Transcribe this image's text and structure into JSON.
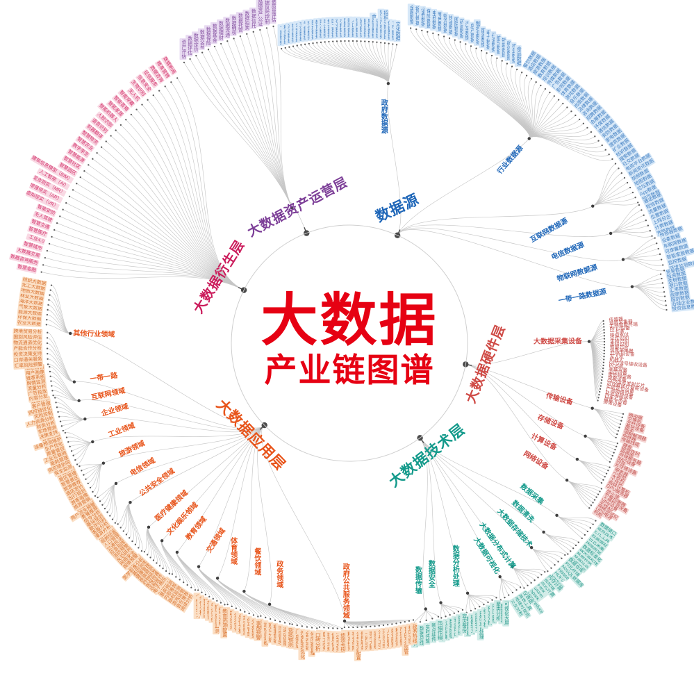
{
  "title": {
    "line1": "大数据",
    "line2": "产业链图谱",
    "color": "#e60113"
  },
  "branches": [
    {
      "name": "数据源",
      "color": "#1e66b8",
      "leaf_color": "#4380c2",
      "leaf_bg": "#d7e8f8",
      "node_angle": -66,
      "label": {
        "angle": -70.4,
        "r": 206,
        "rot": -25,
        "size": 21
      },
      "groups": [
        {
          "name": "政府数据源",
          "angle": -81.5,
          "label_r": 330,
          "hub_r": 378,
          "leaf_r": 438,
          "a0": -103,
          "a1": -81,
          "leaves": [
            "工商数据",
            "税务数据",
            "海关数据",
            "社保数据",
            "公安数据",
            "交通数据",
            "气象数据",
            "环保数据",
            "医疗数据",
            "教育数据",
            "司法数据",
            "审计数据",
            "统计数据",
            "国土数据",
            "农业数据",
            "水利数据",
            "民政数据",
            "财政数据",
            "人口数据",
            "信用数据",
            "旅游数据",
            "能源数据",
            "质检数据",
            "食药监数据",
            "安监数据",
            "知识产权数据",
            "招标采购数据",
            "住建数据",
            "卫生数据",
            "文化数据"
          ]
        },
        {
          "name": "行业数据源",
          "angle": -48.7,
          "label_r": 351,
          "hub_r": 392,
          "leaf_r": 465,
          "a0": -79,
          "a1": -35,
          "leaves": [
            "金融数据",
            "银行数据",
            "证券数据",
            "保险数据",
            "电商数据",
            "零售数据",
            "物流数据",
            "快递数据",
            "医院数据",
            "药品数据",
            "汽车数据",
            "房产数据",
            "制造业数据",
            "能源数据",
            "电力数据",
            "石油数据",
            "航空数据",
            "铁路数据",
            "航运数据",
            "农业数据",
            "食品数据",
            "餐饮数据",
            "酒店数据",
            "旅游数据",
            "教育数据",
            "培训数据",
            "传媒数据",
            "广告数据",
            "影视数据",
            "体育数据",
            "游戏数据",
            "音乐数据",
            "出版数据",
            "法律数据",
            "咨询数据",
            "招聘数据",
            "会展数据",
            "环保数据",
            "通信数据",
            "安防数据",
            "家电数据",
            "建筑数据",
            "矿业数据",
            "纺织数据"
          ]
        },
        {
          "name": "互联网数据源",
          "angle": -29.4,
          "label_r": 330,
          "hub_r": 402,
          "leaf_r": 465,
          "a0": -34,
          "a1": -26,
          "leaves": [
            "搜索数据",
            "社交数据",
            "电商平台数据",
            "新闻资讯数据",
            "视频数据",
            "地图数据",
            "论坛数据",
            "App数据",
            "网页数据"
          ]
        },
        {
          "name": "电信数据源",
          "angle": -22.8,
          "label_r": 341,
          "hub_r": 408,
          "leaf_r": 465,
          "a0": -25.5,
          "a1": -19.5,
          "leaves": [
            "通话数据",
            "短信数据",
            "流量数据",
            "位置数据",
            "上网日志",
            "计费数据",
            "宽带数据"
          ]
        },
        {
          "name": "物联网数据源",
          "angle": -17,
          "label_r": 343,
          "hub_r": 412,
          "leaf_r": 468,
          "a0": -19,
          "a1": -13,
          "leaves": [
            "传感器数据",
            "设备数据",
            "车联网数据",
            "可穿戴数据",
            "智能家居数据",
            "监控数据",
            "环境监测数据"
          ]
        },
        {
          "name": "一带一路数据源",
          "angle": -11.3,
          "label_r": 342,
          "hub_r": 415,
          "leaf_r": 462,
          "a0": -12.5,
          "a1": -6,
          "leaves": [
            "贸易数据",
            "投资数据",
            "关税数据",
            "港口数据",
            "汇率数据",
            "政策数据",
            "国别数据",
            "沿线企业数据库",
            "投资信息数据库"
          ]
        }
      ]
    },
    {
      "name": "大数据硬件层",
      "color": "#cf4a45",
      "leaf_color": "#c0504d",
      "leaf_bg": "#f5d6d4",
      "node_angle": 10.3,
      "label": {
        "angle": 8.7,
        "r": 199,
        "rot": -68,
        "size": 19
      },
      "groups": [
        {
          "name": "大数据采集设备",
          "angle": -0.4,
          "label_r": 300,
          "hub_r": 345,
          "leaf_r": 370,
          "a0": -5,
          "a1": 13,
          "plain": true,
          "leaves": [
            "传感器",
            "追踪采集器",
            "手持智能终端",
            "RFID设备",
            "一卡通",
            "移动支付",
            "证件识别",
            "生物识别",
            "条码识别",
            "智能芯片",
            "信息采集器",
            "2D条码设备",
            "无人机",
            "机器人",
            "GPS信号接收设备",
            "POS机",
            "车载设备",
            "监控设备",
            "条形码设备",
            "穿戴设备",
            "GPS信号发射芯片",
            "可穿戴医疗智能设备",
            "实时定位设备",
            "厂商网络设备",
            "轨迹追踪设备",
            "行车记录仪",
            "智能卡设备",
            "摄像设备"
          ]
        },
        {
          "name": "传输设备",
          "angle": 15,
          "label_r": 313,
          "hub_r": 362,
          "leaf_r": 410,
          "a0": 14.5,
          "a1": 19.5,
          "leaves": [
            "路由器",
            "交换机",
            "光纤设备",
            "基站设备",
            "网关",
            "调制解调器",
            "中继器",
            "传输线缆"
          ]
        },
        {
          "name": "存储设备",
          "angle": 21.5,
          "label_r": 311,
          "hub_r": 365,
          "leaf_r": 415,
          "a0": 20.5,
          "a1": 24.5,
          "leaves": [
            "硬盘",
            "磁盘阵列",
            "磁带库",
            "存储服务器",
            "NAS设备",
            "闪存",
            "云存储设备"
          ]
        },
        {
          "name": "计算设备",
          "angle": 27,
          "label_r": 314,
          "hub_r": 368,
          "leaf_r": 418,
          "a0": 25.5,
          "a1": 29,
          "leaves": [
            "服务器",
            "小型机",
            "大型机",
            "工作站",
            "超级计算机",
            "GPU服务器"
          ]
        },
        {
          "name": "网络设备",
          "angle": 32.2,
          "label_r": 317,
          "hub_r": 370,
          "leaf_r": 422,
          "a0": 30,
          "a1": 34.5,
          "leaves": [
            "防火墙",
            "负载均衡器",
            "入侵检测设备",
            "VPN设备",
            "无线AP",
            "网络测试仪",
            "UPS电源",
            "机柜"
          ]
        }
      ]
    },
    {
      "name": "大数据技术层",
      "color": "#149a8b",
      "leaf_color": "#2f9d8f",
      "leaf_bg": "#d2ece8",
      "node_angle": 53.3,
      "label": {
        "angle": 55.3,
        "r": 197,
        "rot": -38,
        "size": 21
      },
      "groups": [
        {
          "name": "数据采集",
          "angle": 39.7,
          "label_r": 341,
          "hub_r": 388,
          "leaf_r": 440,
          "a0": 40,
          "a1": 35.8,
          "leaves": [
            "网络爬虫",
            "日志采集",
            "数据抽取",
            "ETL工具",
            "埋点技术",
            "数据接口"
          ]
        },
        {
          "name": "数据清洗",
          "angle": 44.2,
          "label_r": 348,
          "hub_r": 390,
          "leaf_r": 440,
          "a0": 44,
          "a1": 41,
          "leaves": [
            "数据去重",
            "数据过滤",
            "数据转换",
            "缺失值处理",
            "数据标准化"
          ]
        },
        {
          "name": "大数据存储技术",
          "angle": 48.3,
          "label_r": 357,
          "hub_r": 394,
          "leaf_r": 438,
          "a0": 49,
          "a1": 44.5,
          "leaves": [
            "Hadoop",
            "HDFS",
            "HBase",
            "NoSQL数据库",
            "列式存储",
            "数据仓库"
          ]
        },
        {
          "name": "大数据分布式计算",
          "angle": 53.9,
          "label_r": 361,
          "hub_r": 398,
          "leaf_r": 436,
          "a0": 54.5,
          "a1": 49.5,
          "leaves": [
            "MapReduce",
            "Spark",
            "Storm",
            "Flink",
            "流式计算",
            "批处理",
            "内存计算"
          ]
        },
        {
          "name": "大数据可视化",
          "angle": 57.2,
          "label_r": 364,
          "hub_r": 400,
          "leaf_r": 432,
          "a0": 59.5,
          "a1": 55,
          "leaves": [
            "数据图表",
            "可视化大屏",
            "交互分析",
            "地理可视化",
            "报表工具",
            "仪表盘"
          ]
        },
        {
          "name": "数据分析处理",
          "angle": 64.7,
          "label_r": 355,
          "hub_r": 398,
          "leaf_r": 426,
          "a0": 66.5,
          "a1": 60,
          "leaves": [
            "数据挖掘",
            "机器学习",
            "深度学习",
            "自然语言处理",
            "统计分析",
            "预测分析",
            "用户画像",
            "聚类分析"
          ]
        },
        {
          "name": "数据安全",
          "angle": 70.6,
          "label_r": 352,
          "hub_r": 396,
          "leaf_r": 420,
          "a0": 71.5,
          "a1": 67,
          "leaves": [
            "数据加密",
            "访问控制",
            "数据脱敏",
            "安全审计",
            "隐私保护",
            "容灾备份"
          ]
        },
        {
          "name": "数据传输",
          "angle": 74,
          "label_r": 355,
          "hub_r": 398,
          "leaf_r": 417,
          "a0": 77,
          "a1": 72,
          "leaves": [
            "消息队列",
            "数据总线",
            "实时传输",
            "断点续传",
            "压缩传输"
          ]
        }
      ]
    },
    {
      "name": "大数据应用层",
      "color": "#e8541a",
      "leaf_color": "#d8722f",
      "leaf_bg": "#fbdfc5",
      "node_angle": 136,
      "label": {
        "angle": 137,
        "r": 194,
        "rot": 46,
        "size": 21
      },
      "groups": [
        {
          "name": "政府公共服务领域",
          "angle": 91,
          "label_r": 357,
          "hub_r": 400,
          "leaf_r": 412,
          "a0": 91,
          "a1": 77,
          "leaves": [
            "智慧城市",
            "精准扶贫",
            "社会保障",
            "公共资源配置",
            "便民服务",
            "一网通办",
            "城市大脑",
            "应急管理",
            "公共卫生",
            "环境治理",
            "人口服务",
            "就业服务",
            "税务服务",
            "市场监管",
            "食品安全监管",
            "社区治理",
            "政务热线"
          ]
        },
        {
          "name": "政务领域",
          "angle": 107,
          "label_r": 348,
          "hub_r": 393,
          "leaf_r": 414,
          "a0": 96,
          "a1": 91.5,
          "leaves": [
            "政务公开",
            "电子政务",
            "城市治理",
            "信用体系",
            "决策支持",
            "绩效考核"
          ]
        },
        {
          "name": "餐饮领域",
          "angle": 113,
          "label_r": 342,
          "hub_r": 388,
          "leaf_r": 416,
          "a0": 101.5,
          "a1": 96.5,
          "leaves": [
            "菜品推荐",
            "门店选址",
            "外卖配送优化",
            "会员营销",
            "供应链管理",
            "口碑分析"
          ]
        },
        {
          "name": "体育领域",
          "angle": 119.3,
          "label_r": 343,
          "hub_r": 388,
          "leaf_r": 416,
          "a0": 108,
          "a1": 102,
          "leaves": [
            "赛事分析",
            "运动员训练",
            "观众分析",
            "赛事营销",
            "场馆管理",
            "运动健康",
            "竞技预测"
          ]
        },
        {
          "name": "交通领域",
          "angle": 124,
          "label_r": 343,
          "hub_r": 388,
          "leaf_r": 418,
          "a0": 115,
          "a1": 108.5,
          "leaves": [
            "智慧交通",
            "路况预测",
            "公交优化",
            "出行分析",
            "车流监测",
            "停车管理",
            "交通规划",
            "事故预警"
          ]
        },
        {
          "name": "教育领域",
          "angle": 129.5,
          "label_r": 346,
          "hub_r": 390,
          "leaf_r": 420,
          "a0": 121.5,
          "a1": 115.5,
          "leaves": [
            "个性化学习",
            "学情分析",
            "智慧校园",
            "在线教育",
            "考试评价",
            "教学质量监测",
            "招生分析",
            "教育资源配置"
          ]
        },
        {
          "name": "文化娱乐领域",
          "angle": 133.5,
          "label_r": 349,
          "hub_r": 392,
          "leaf_r": 422,
          "a0": 127.5,
          "a1": 122,
          "leaves": [
            "影视分析",
            "票房预测",
            "内容推荐",
            "版权监测",
            "游戏运营",
            "音乐推荐",
            "阅读分析"
          ]
        },
        {
          "name": "医疗健康领域",
          "angle": 137.5,
          "label_r": 347,
          "hub_r": 392,
          "leaf_r": 424,
          "a0": 134.5,
          "a1": 128,
          "leaves": [
            "辅助诊断",
            "医学影像分析",
            "基因测序",
            "健康管理",
            "疾病预测",
            "药物研发",
            "医保控费",
            "远程医疗",
            "电子病历"
          ]
        },
        {
          "name": "公共安全领域",
          "angle": 144,
          "label_r": 342,
          "hub_r": 390,
          "leaf_r": 426,
          "a0": 142,
          "a1": 135,
          "leaves": [
            "治安防控",
            "视频侦查",
            "人口管理",
            "交通执法",
            "应急指挥",
            "消防预警",
            "反恐研判",
            "网络安全",
            "舆情预警"
          ]
        },
        {
          "name": "电信领域",
          "angle": 149,
          "label_r": 347,
          "hub_r": 392,
          "leaf_r": 428,
          "a0": 148.5,
          "a1": 142.5,
          "leaves": [
            "网络优化",
            "用户流失预警",
            "套餐推荐",
            "信令分析",
            "基站规划",
            "欺诈识别",
            "客服分析",
            "漫游分析"
          ]
        },
        {
          "name": "旅游领域",
          "angle": 154,
          "label_r": 348,
          "hub_r": 394,
          "leaf_r": 430,
          "a0": 155.5,
          "a1": 149,
          "leaves": [
            "客流预测",
            "景区管理",
            "智慧景区",
            "旅游推荐",
            "酒店定价",
            "出行规划",
            "游客画像",
            "旅游营销"
          ]
        },
        {
          "name": "工业领域",
          "angle": 159,
          "label_r": 351,
          "hub_r": 396,
          "leaf_r": 432,
          "a0": 162.5,
          "a1": 156,
          "leaves": [
            "智能制造",
            "设备预测维护",
            "生产优化",
            "质量管控",
            "工业互联网",
            "能耗管理",
            "供应链协同",
            "安全监测"
          ]
        },
        {
          "name": "企业领域",
          "angle": 164,
          "label_r": 351,
          "hub_r": 396,
          "leaf_r": 434,
          "a0": 169.5,
          "a1": 163,
          "leaves": [
            "经营分析",
            "客户管理",
            "供应链优化",
            "风险控制",
            "人力资源分析",
            "财务分析",
            "市场预测",
            "决策支持"
          ]
        },
        {
          "name": "互联网领域",
          "angle": 168,
          "label_r": 355,
          "hub_r": 398,
          "leaf_r": 436,
          "a0": 175.5,
          "a1": 170,
          "leaves": [
            "精准营销",
            "用户画像",
            "推荐系统",
            "舆情监测",
            "流量分析",
            "广告投放",
            "内容分发"
          ]
        },
        {
          "name": "一带一路",
          "angle": 172,
          "label_r": 357,
          "hub_r": 400,
          "leaf_r": 438,
          "a0": 182,
          "a1": 176,
          "leaves": [
            "跨境贸易分析",
            "国别风险评估",
            "物流通道优化",
            "产能合作分析",
            "投资决策支持",
            "口岸通关服务",
            "汇率风险预警"
          ]
        },
        {
          "name": "其他行业领域",
          "angle": 182,
          "label_r": 368,
          "hub_r": 402,
          "leaf_r": 440,
          "a0": 183.5,
          "a1": 191,
          "leaves": [
            "农业大数据",
            "环保大数据",
            "能源大数据",
            "气象大数据",
            "海洋大数据",
            "林业大数据",
            "地质大数据",
            "化工大数据",
            "纺织大数据"
          ]
        }
      ]
    },
    {
      "name": "大数据衍生层",
      "color": "#cb1b5b",
      "leaf_color": "#d3336b",
      "leaf_bg": "#f9d9e4",
      "node_angle": -153.3,
      "label": {
        "angle": -153,
        "r": 210,
        "rot": -58,
        "size": 19
      },
      "groups": [
        {
          "angle": -153.3,
          "label_r": 0,
          "hub_r": 172,
          "leaf_r": 458,
          "a0": -123,
          "a1": -167,
          "leaves": [
            "数据新闻",
            "精准营销",
            "数据咨询",
            "征信服务",
            "信息安全",
            "生物识别",
            "无人机",
            "智能穿戴",
            "智能音箱",
            "智能家居",
            "智能机器人",
            "人脸识别",
            "语音识别",
            "机器翻译",
            "智慧物流",
            "智慧农业",
            "数字孪生",
            "智慧能源",
            "智慧社区",
            "智慧园区",
            "建筑信息模型（BIM）",
            "人工智能（AI）",
            "混合现实（MR）",
            "增强现实（AR）",
            "虚拟现实（VR）",
            "智能安防",
            "无人驾驶",
            "智慧交通",
            "智慧医疗",
            "工业4.0",
            "智慧城市",
            "大数据交易",
            "数据咨询服务",
            "智慧金融"
          ]
        }
      ]
    },
    {
      "name": "大数据资产运营层",
      "color": "#7d3f98",
      "leaf_color": "#8450a0",
      "leaf_bg": "#e9dcf2",
      "node_angle": -111.3,
      "label": {
        "angle": -110.8,
        "r": 209,
        "rot": -28,
        "size": 19
      },
      "groups": [
        {
          "angle": -113,
          "label_r": 0,
          "hub_r": 212,
          "leaf_r": 472,
          "a0": -103.5,
          "a1": -120.5,
          "leaves": [
            "数据质量评估",
            "数据风险控制",
            "数据资产公证",
            "数据信托",
            "数据拍卖",
            "数据托管",
            "数据确权",
            "数据流通",
            "数据理财",
            "数据基金",
            "数据保险",
            "数据交易",
            "数据定价",
            "数据评估",
            "资产评估"
          ]
        }
      ]
    }
  ]
}
